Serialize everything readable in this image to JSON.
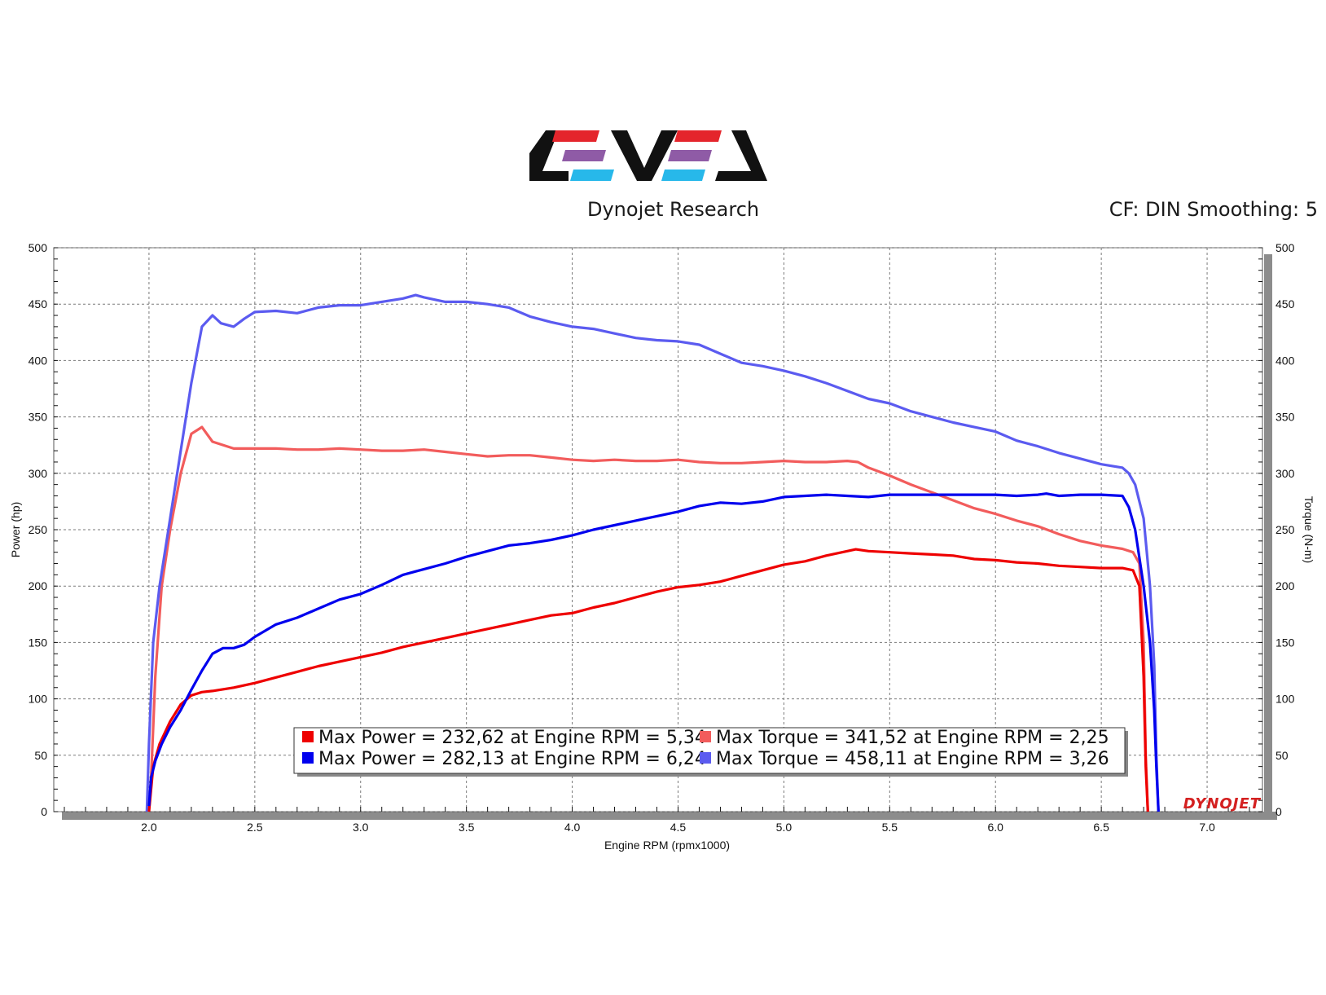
{
  "header": {
    "brand": "Dynojet Research",
    "correction": "CF: DIN Smoothing: 5"
  },
  "colors": {
    "power_run1": "#ee0000",
    "torque_run1": "#f25c5c",
    "power_run2": "#0000ee",
    "torque_run2": "#5b5bf0",
    "logo_red": "#e4252c",
    "logo_purple": "#8f5ba6",
    "logo_cyan": "#27b8ea"
  },
  "chart_data": {
    "type": "line",
    "xlabel": "Engine RPM (rpmx1000)",
    "ylabel_left": "Power (hp)",
    "ylabel_right": "Torque (N-m)",
    "xlim": [
      1.55,
      7.3
    ],
    "ylim": [
      0,
      500
    ],
    "x_ticks": [
      "2.0",
      "2.5",
      "3.0",
      "3.5",
      "4.0",
      "4.5",
      "5.0",
      "5.5",
      "6.0",
      "6.5",
      "7.0"
    ],
    "y_ticks": [
      "0",
      "50",
      "100",
      "150",
      "200",
      "250",
      "300",
      "350",
      "400",
      "450",
      "500"
    ],
    "grid": true,
    "watermark": "DYNOJET",
    "legend": [
      {
        "text": "Max Power = 232,62 at Engine RPM = 5,34",
        "color": "#ee0000"
      },
      {
        "text": "Max Torque = 341,52 at Engine RPM = 2,25",
        "color": "#f25c5c"
      },
      {
        "text": "Max Power = 282,13 at Engine RPM = 6,24",
        "color": "#0000ee"
      },
      {
        "text": "Max Torque = 458,11 at Engine RPM = 3,26",
        "color": "#5b5bf0"
      }
    ],
    "series": [
      {
        "color": "#f25c5c",
        "x": [
          2.0,
          2.01,
          2.03,
          2.06,
          2.1,
          2.15,
          2.2,
          2.25,
          2.3,
          2.4,
          2.5,
          2.6,
          2.7,
          2.8,
          2.9,
          3.0,
          3.1,
          3.2,
          3.3,
          3.4,
          3.5,
          3.6,
          3.7,
          3.8,
          3.9,
          4.0,
          4.1,
          4.2,
          4.3,
          4.4,
          4.5,
          4.6,
          4.7,
          4.8,
          4.9,
          5.0,
          5.1,
          5.2,
          5.3,
          5.35,
          5.4,
          5.5,
          5.6,
          5.7,
          5.8,
          5.9,
          6.0,
          6.1,
          6.2,
          6.3,
          6.4,
          6.5,
          6.6,
          6.65,
          6.68,
          6.7,
          6.71,
          6.72
        ],
        "values": [
          0,
          30,
          120,
          200,
          250,
          300,
          335,
          341,
          328,
          322,
          322,
          322,
          321,
          321,
          322,
          321,
          320,
          320,
          321,
          319,
          317,
          315,
          316,
          316,
          314,
          312,
          311,
          312,
          311,
          311,
          312,
          310,
          309,
          309,
          310,
          311,
          310,
          310,
          311,
          310,
          305,
          298,
          290,
          283,
          276,
          269,
          264,
          258,
          253,
          246,
          240,
          236,
          233,
          230,
          220,
          150,
          50,
          0
        ]
      },
      {
        "color": "#5b5bf0",
        "x": [
          1.99,
          2.0,
          2.02,
          2.05,
          2.1,
          2.15,
          2.2,
          2.25,
          2.3,
          2.34,
          2.4,
          2.45,
          2.5,
          2.6,
          2.7,
          2.8,
          2.9,
          3.0,
          3.1,
          3.2,
          3.26,
          3.3,
          3.4,
          3.5,
          3.6,
          3.7,
          3.8,
          3.9,
          4.0,
          4.1,
          4.2,
          4.3,
          4.4,
          4.5,
          4.6,
          4.7,
          4.8,
          4.9,
          5.0,
          5.1,
          5.2,
          5.3,
          5.4,
          5.5,
          5.6,
          5.7,
          5.8,
          5.9,
          6.0,
          6.1,
          6.2,
          6.3,
          6.4,
          6.5,
          6.6,
          6.63,
          6.66,
          6.7,
          6.73,
          6.75,
          6.76,
          6.77
        ],
        "values": [
          0,
          60,
          150,
          200,
          260,
          320,
          380,
          430,
          440,
          433,
          430,
          437,
          443,
          444,
          442,
          447,
          449,
          449,
          452,
          455,
          458,
          456,
          452,
          452,
          450,
          447,
          439,
          434,
          430,
          428,
          424,
          420,
          418,
          417,
          414,
          406,
          398,
          395,
          391,
          386,
          380,
          373,
          366,
          362,
          355,
          350,
          345,
          341,
          337,
          329,
          324,
          318,
          313,
          308,
          305,
          300,
          290,
          260,
          200,
          130,
          50,
          0
        ]
      },
      {
        "color": "#ee0000",
        "x": [
          2.0,
          2.01,
          2.02,
          2.05,
          2.1,
          2.15,
          2.2,
          2.25,
          2.3,
          2.4,
          2.5,
          2.6,
          2.7,
          2.8,
          2.9,
          3.0,
          3.1,
          3.2,
          3.3,
          3.4,
          3.5,
          3.6,
          3.7,
          3.8,
          3.9,
          4.0,
          4.1,
          4.2,
          4.3,
          4.4,
          4.5,
          4.6,
          4.7,
          4.8,
          4.9,
          5.0,
          5.1,
          5.2,
          5.3,
          5.34,
          5.4,
          5.5,
          5.6,
          5.7,
          5.8,
          5.9,
          6.0,
          6.1,
          6.2,
          6.3,
          6.4,
          6.5,
          6.6,
          6.65,
          6.68,
          6.7,
          6.71,
          6.72
        ],
        "values": [
          0,
          20,
          40,
          60,
          80,
          95,
          103,
          106,
          107,
          110,
          114,
          119,
          124,
          129,
          133,
          137,
          141,
          146,
          150,
          154,
          158,
          162,
          166,
          170,
          174,
          176,
          181,
          185,
          190,
          195,
          199,
          201,
          204,
          209,
          214,
          219,
          222,
          227,
          231,
          232.6,
          231,
          230,
          229,
          228,
          227,
          224,
          223,
          221,
          220,
          218,
          217,
          216,
          216,
          214,
          200,
          120,
          40,
          0
        ]
      },
      {
        "color": "#0000ee",
        "x": [
          2.0,
          2.01,
          2.03,
          2.06,
          2.1,
          2.15,
          2.2,
          2.25,
          2.3,
          2.35,
          2.4,
          2.45,
          2.5,
          2.6,
          2.7,
          2.8,
          2.9,
          3.0,
          3.1,
          3.2,
          3.3,
          3.4,
          3.5,
          3.6,
          3.7,
          3.8,
          3.9,
          4.0,
          4.1,
          4.2,
          4.3,
          4.4,
          4.5,
          4.6,
          4.7,
          4.8,
          4.9,
          5.0,
          5.1,
          5.2,
          5.3,
          5.4,
          5.5,
          5.6,
          5.7,
          5.8,
          5.9,
          6.0,
          6.1,
          6.2,
          6.24,
          6.3,
          6.4,
          6.5,
          6.6,
          6.63,
          6.66,
          6.7,
          6.73,
          6.75,
          6.76,
          6.77
        ],
        "values": [
          5,
          30,
          45,
          60,
          75,
          90,
          108,
          125,
          140,
          145,
          145,
          148,
          155,
          166,
          172,
          180,
          188,
          193,
          201,
          210,
          215,
          220,
          226,
          231,
          236,
          238,
          241,
          245,
          250,
          254,
          258,
          262,
          266,
          271,
          274,
          273,
          275,
          279,
          280,
          281,
          280,
          279,
          281,
          281,
          281,
          281,
          281,
          281,
          280,
          281,
          282,
          280,
          281,
          281,
          280,
          270,
          250,
          200,
          150,
          90,
          40,
          0
        ]
      }
    ]
  }
}
